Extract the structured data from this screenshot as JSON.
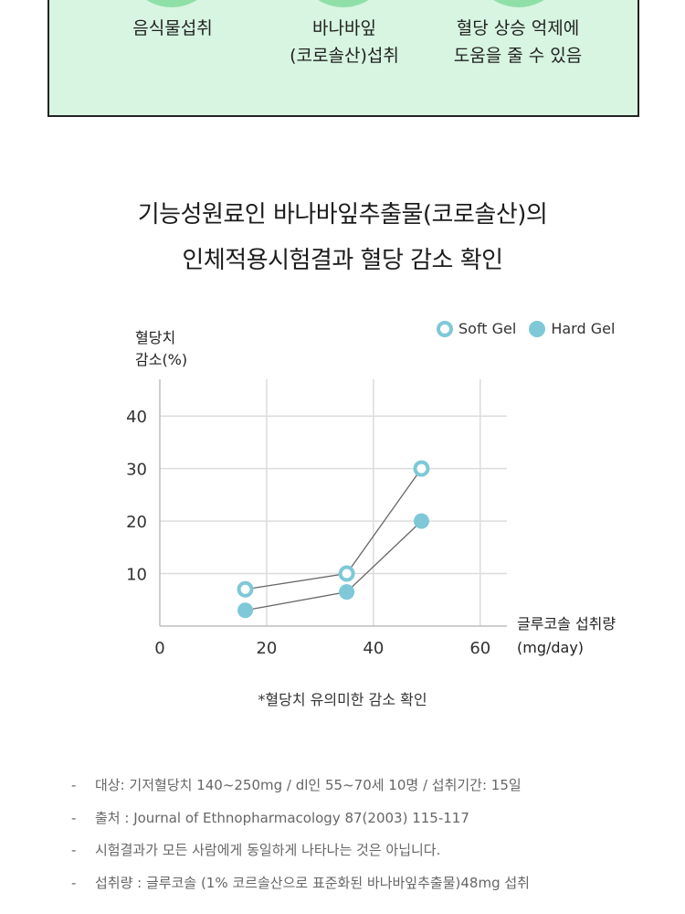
{
  "top_panel": {
    "items": [
      {
        "lines": [
          "음식물섭취"
        ]
      },
      {
        "lines": [
          "바나바잎",
          "(코로솔산)섭취"
        ]
      },
      {
        "lines": [
          "혈당 상승 억제에",
          "도움을 줄 수 있음"
        ]
      }
    ],
    "colors": {
      "panel_bg": "#d7f5e0",
      "circle": "#8fe0a7",
      "border": "#222222"
    }
  },
  "headline": {
    "line1": "기능성원료인 바나바잎추출물(코로솔산)의",
    "line2": "인체적용시험결과 혈당 감소 확인"
  },
  "chart_data": {
    "type": "line",
    "title": "",
    "ylabel_lines": [
      "혈당치",
      "감소(%)"
    ],
    "xlabel_lines": [
      "글루코솔 섭취량",
      "(mg/day)"
    ],
    "xlim": [
      0,
      65
    ],
    "ylim": [
      0,
      47
    ],
    "xticks": [
      0,
      20,
      40,
      60
    ],
    "yticks": [
      10,
      20,
      30,
      40
    ],
    "grid": true,
    "legend_position": "top-right",
    "series": [
      {
        "name": "Soft Gel",
        "marker": "ring",
        "color": "#7ec8d8",
        "x": [
          16,
          35,
          49
        ],
        "y": [
          7,
          10,
          30
        ]
      },
      {
        "name": "Hard Gel",
        "marker": "filled",
        "color": "#7ec8d8",
        "x": [
          16,
          35,
          49
        ],
        "y": [
          3,
          6.5,
          20
        ]
      }
    ]
  },
  "footnote": "*혈당치 유의미한 감소 확인",
  "notes": [
    "대상: 기저혈당치 140~250mg / dl인 55~70세 10명 / 섭취기간: 15일",
    "출처 : Journal of Ethnopharmacology 87(2003) 115-117",
    "시험결과가 모든 사람에게 동일하게 나타나는 것은 아닙니다.",
    "섭취량 : 글루코솔 (1% 코르솔산으로 표준화된 바나바잎추출물)48mg 섭취"
  ],
  "note_dash": "-"
}
